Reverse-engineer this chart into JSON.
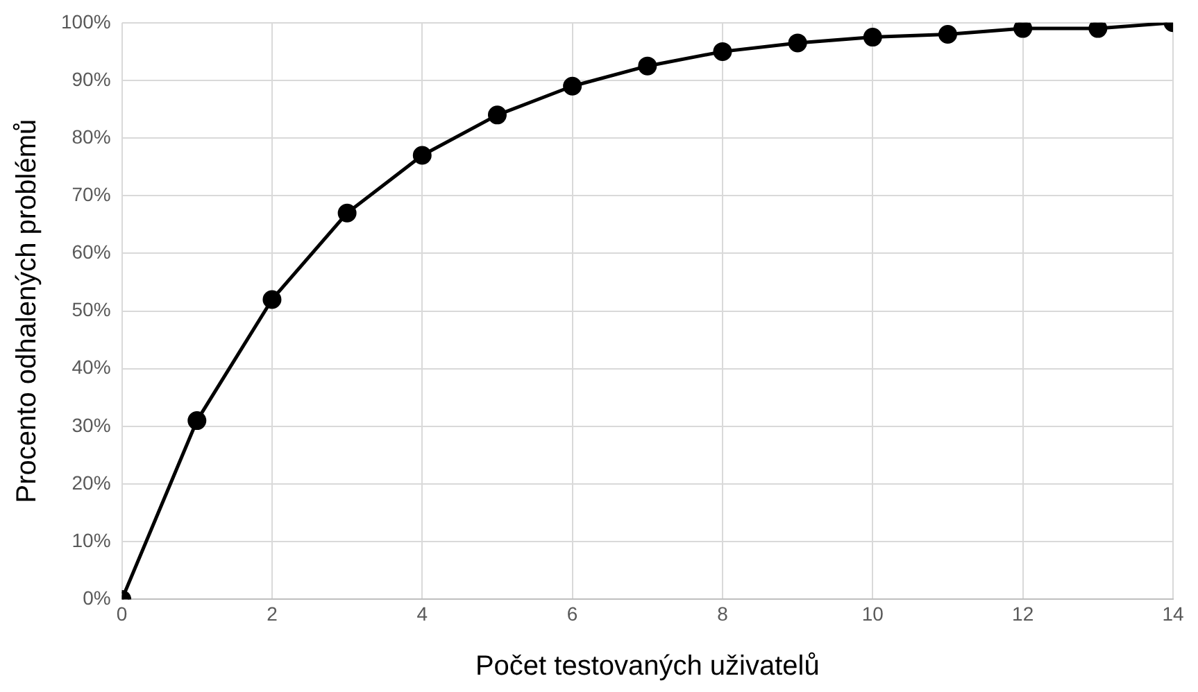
{
  "chart_data": {
    "type": "line",
    "xlabel": "Počet testovaných uživatelů",
    "ylabel": "Procento odhalených problémů",
    "x": [
      0,
      1,
      2,
      3,
      4,
      5,
      6,
      7,
      8,
      9,
      10,
      11,
      12,
      13,
      14
    ],
    "series": [
      {
        "color": "#000000",
        "values": [
          0,
          31,
          52,
          67,
          77,
          84,
          89,
          92.5,
          95,
          96.5,
          97.5,
          98,
          99,
          99,
          100
        ]
      }
    ],
    "xlim": [
      0,
      14
    ],
    "xticks": [
      0,
      2,
      4,
      6,
      8,
      10,
      12,
      14
    ],
    "ylim": [
      0,
      100
    ],
    "yticks": [
      {
        "value": 0,
        "label": "0%"
      },
      {
        "value": 10,
        "label": "10%"
      },
      {
        "value": 20,
        "label": "20%"
      },
      {
        "value": 30,
        "label": "30%"
      },
      {
        "value": 40,
        "label": "40%"
      },
      {
        "value": 50,
        "label": "50%"
      },
      {
        "value": 60,
        "label": "60%"
      },
      {
        "value": 70,
        "label": "70%"
      },
      {
        "value": 80,
        "label": "80%"
      },
      {
        "value": 90,
        "label": "90%"
      },
      {
        "value": 100,
        "label": "100%"
      }
    ],
    "grid": true,
    "legend": false,
    "marker": "circle",
    "line_style": "solid"
  }
}
